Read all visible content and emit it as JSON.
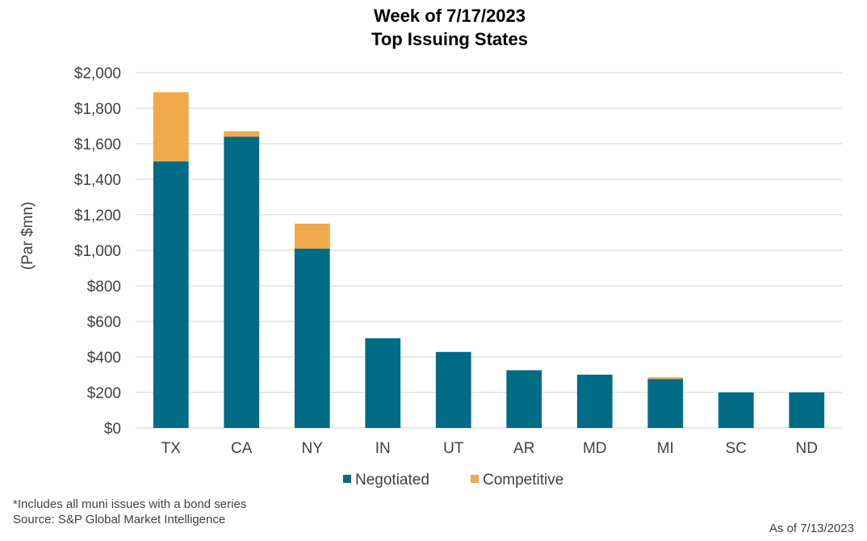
{
  "chart_data": {
    "type": "bar",
    "stacked": true,
    "title": [
      "Week of 7/17/2023",
      "Top Issuing States"
    ],
    "ylabel": "(Par $mn)",
    "xlabel": "",
    "categories": [
      "TX",
      "CA",
      "NY",
      "IN",
      "UT",
      "AR",
      "MD",
      "MI",
      "SC",
      "ND"
    ],
    "series": [
      {
        "name": "Negotiated",
        "color": "#006B85",
        "values": [
          1500,
          1640,
          1010,
          505,
          428,
          325,
          300,
          275,
          200,
          200
        ]
      },
      {
        "name": "Competitive",
        "color": "#F0A94B",
        "values": [
          390,
          30,
          140,
          0,
          0,
          0,
          0,
          10,
          0,
          0
        ]
      }
    ],
    "ylim": [
      0,
      2000
    ],
    "yticks": [
      0,
      200,
      400,
      600,
      800,
      1000,
      1200,
      1400,
      1600,
      1800,
      2000
    ],
    "ytick_labels": [
      "$0",
      "$200",
      "$400",
      "$600",
      "$800",
      "$1,000",
      "$1,200",
      "$1,400",
      "$1,600",
      "$1,800",
      "$2,000"
    ],
    "grid": true,
    "legend_position": "bottom",
    "grid_color": "#D9D9D9"
  },
  "footnotes": {
    "note": "*Includes all muni issues with a bond series",
    "source": "Source: S&P Global Market Intelligence",
    "as_of": "As of 7/13/2023"
  }
}
